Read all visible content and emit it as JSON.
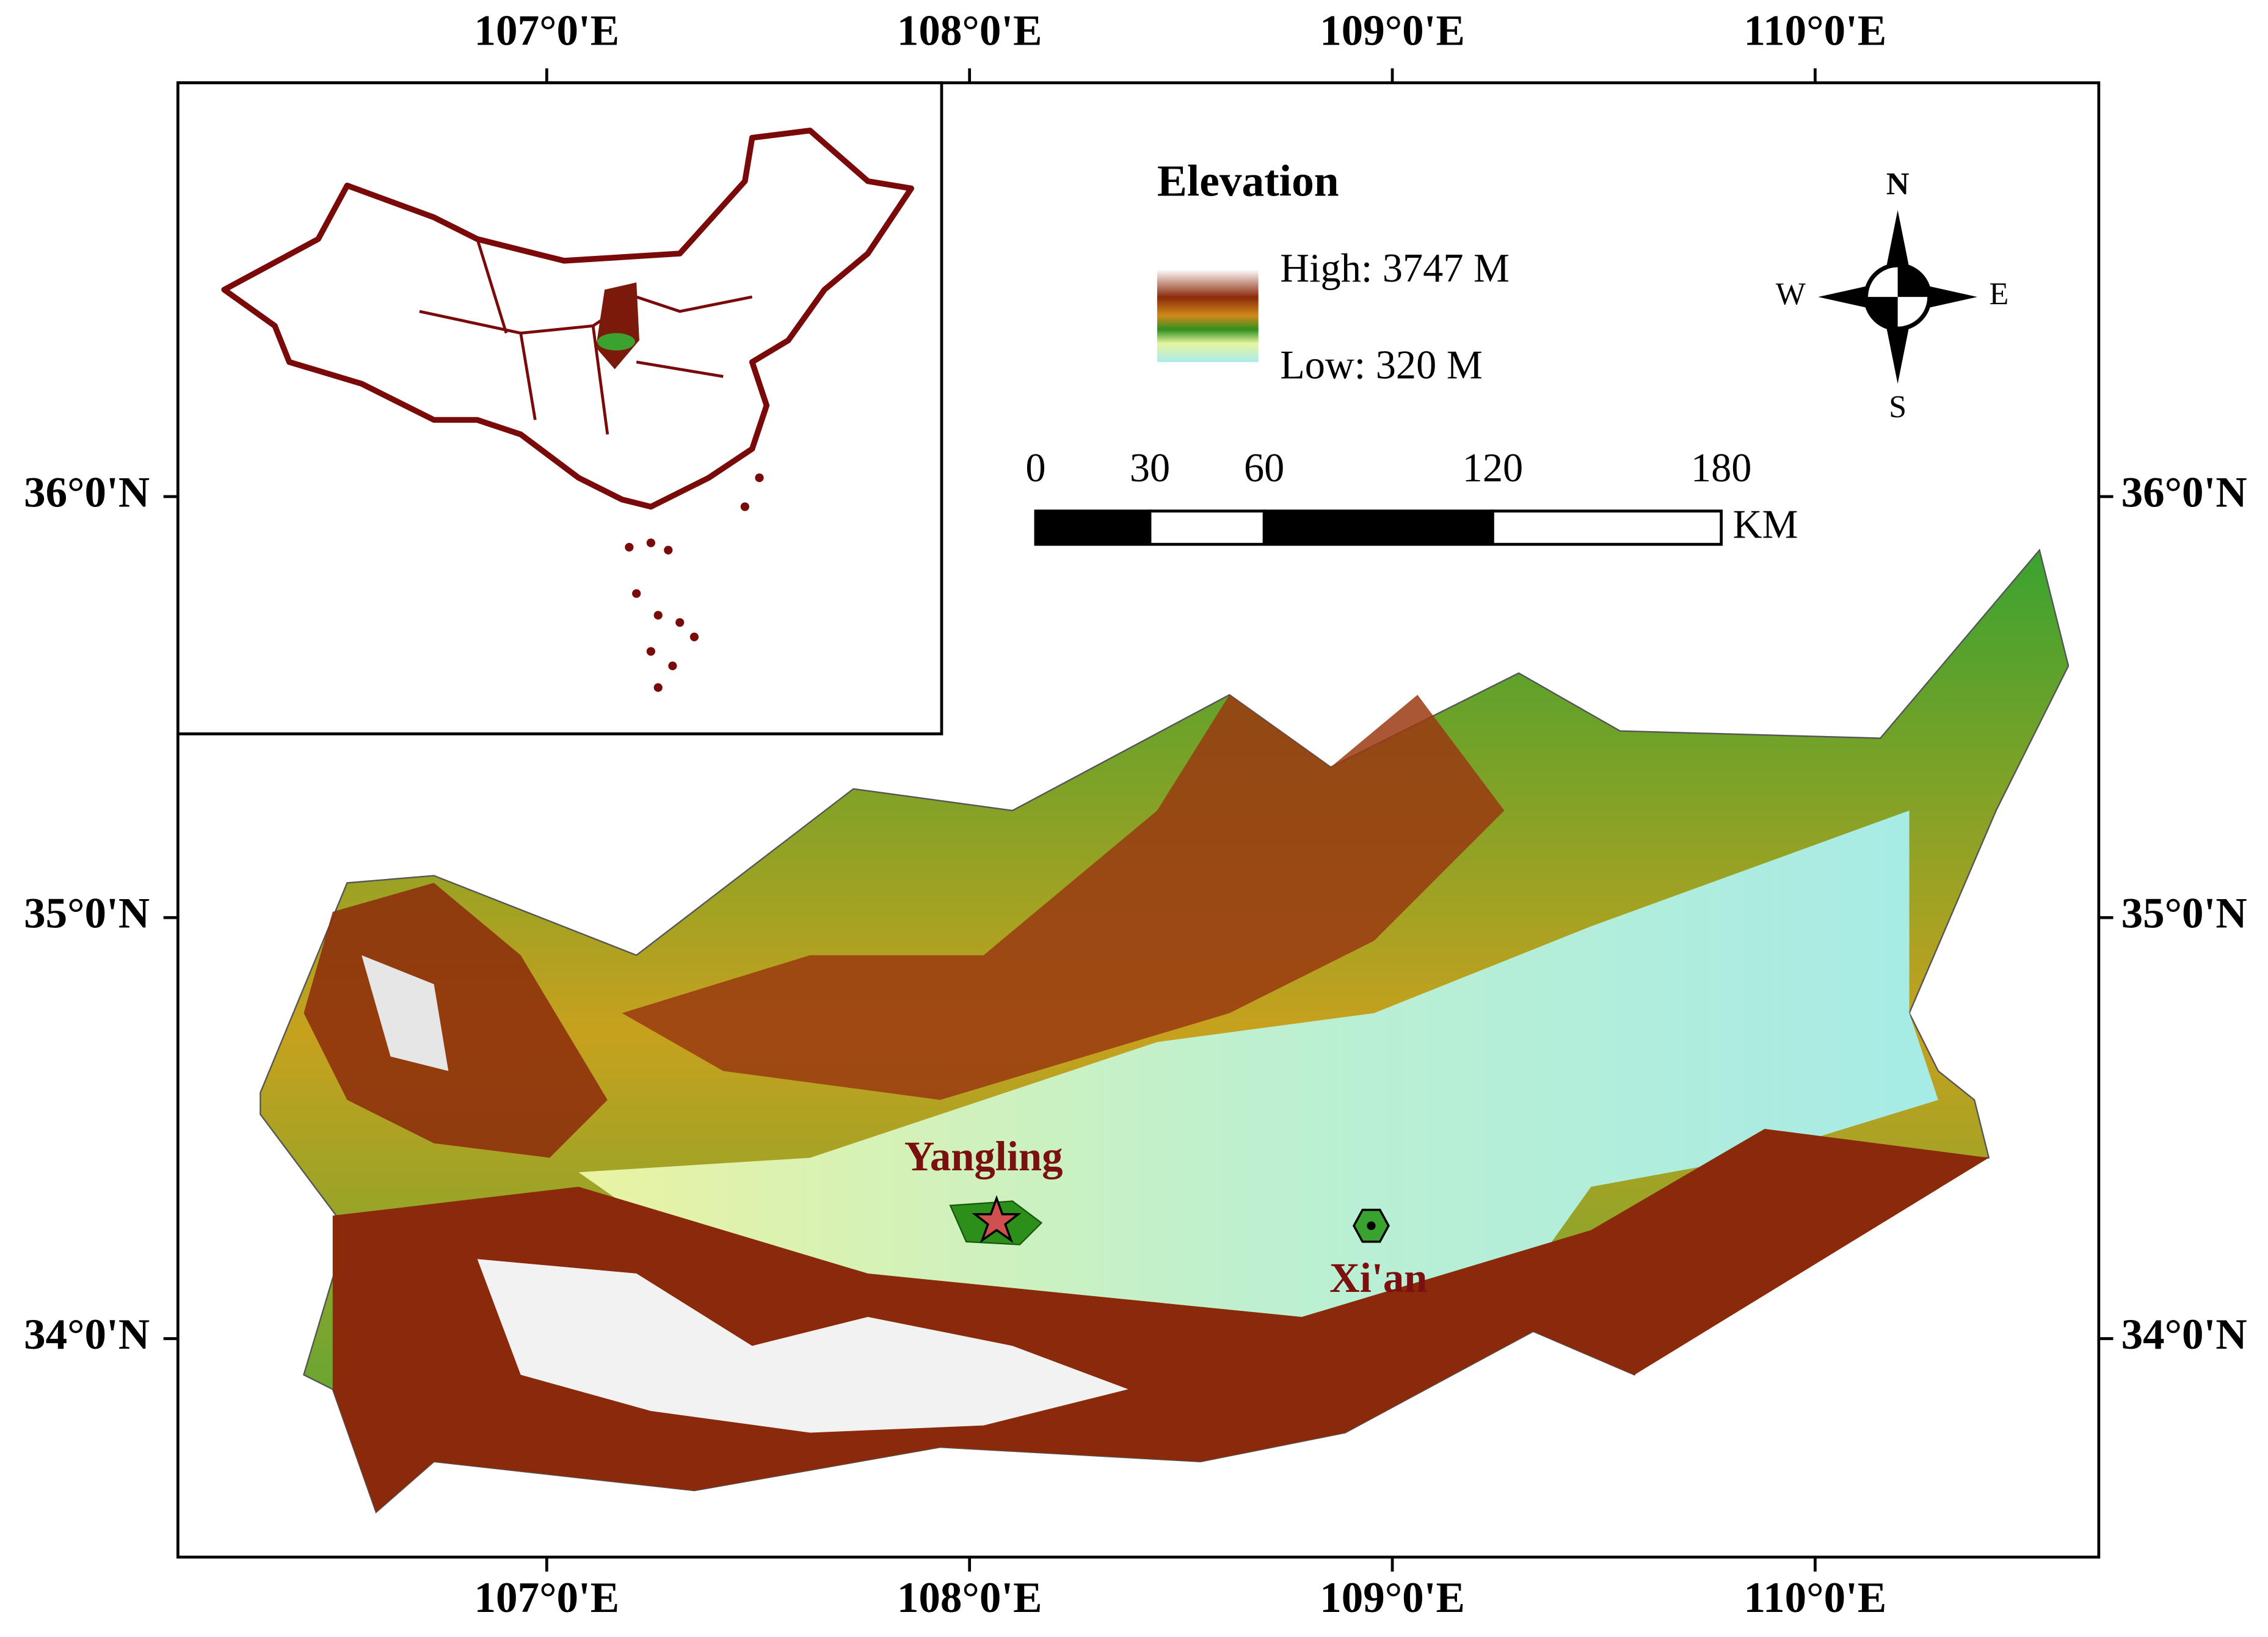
{
  "map": {
    "longitude_ticks": [
      {
        "value": 107,
        "label": "107°0'E"
      },
      {
        "value": 108,
        "label": "108°0'E"
      },
      {
        "value": 109,
        "label": "109°0'E"
      },
      {
        "value": 110,
        "label": "110°0'E"
      }
    ],
    "latitude_ticks": [
      {
        "value": 36,
        "label": "36°0'N"
      },
      {
        "value": 35,
        "label": "35°0'N"
      },
      {
        "value": 34,
        "label": "34°0'N"
      }
    ],
    "legend": {
      "title": "Elevation",
      "high": "High: 3747 M",
      "low": "Low: 320 M"
    },
    "scale_bar": {
      "ticks": [
        0,
        30,
        60,
        120,
        180
      ],
      "unit": "KM"
    },
    "compass": {
      "north": "N",
      "east": "E",
      "south": "S",
      "west": "W"
    },
    "places": [
      {
        "name": "Yangling"
      },
      {
        "name": "Xi'an"
      }
    ]
  }
}
